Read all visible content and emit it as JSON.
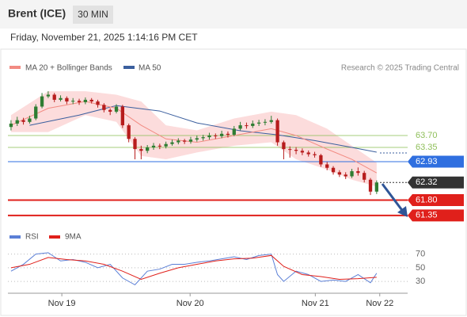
{
  "chart_data": {
    "type": "candlestick",
    "title": "Brent (ICE)",
    "timeframe": "30 MIN",
    "subtitle": "Friday, November 21, 2025 1:14:16 PM CET",
    "credit": "Research © 2025 Trading Central",
    "up_color": "#2e7d32",
    "down_color": "#b71c1c",
    "xlim": [
      -0.5,
      64
    ],
    "xticks": [
      {
        "value": 8.2,
        "label": "Nov 19"
      },
      {
        "value": 28.9,
        "label": "Nov 20"
      },
      {
        "value": 49.1,
        "label": "Nov 21"
      },
      {
        "value": 59.5,
        "label": "Nov 22"
      }
    ],
    "ylim": [
      61.09,
      65.47
    ],
    "levels": [
      {
        "value": 63.7,
        "label": "63.70",
        "color": "#8fbf5a",
        "style": "green"
      },
      {
        "value": 63.35,
        "label": "63.35",
        "color": "#8fbf5a",
        "style": "green"
      },
      {
        "value": 62.93,
        "color": "#2f6fe0",
        "style": "box"
      },
      {
        "value": 62.32,
        "color": "#333333",
        "style": "dotted"
      },
      {
        "value": 61.8,
        "label": "61.80",
        "color": "#e0201b",
        "style": "box"
      },
      {
        "value": 61.35,
        "color": "#e0201b",
        "style": "box"
      }
    ],
    "candles": {
      "open": [
        63.95,
        64.05,
        64.15,
        64.1,
        64.2,
        64.55,
        64.85,
        64.9,
        64.75,
        64.8,
        64.7,
        64.72,
        64.68,
        64.75,
        64.7,
        64.6,
        64.45,
        64.4,
        64.55,
        64.0,
        63.6,
        63.3,
        63.25,
        63.35,
        63.4,
        63.38,
        63.45,
        63.5,
        63.55,
        63.52,
        63.58,
        63.62,
        63.65,
        63.7,
        63.68,
        63.75,
        63.72,
        63.9,
        64.0,
        63.98,
        64.05,
        64.08,
        64.1,
        64.15,
        63.5,
        63.3,
        63.28,
        63.25,
        63.2,
        63.15,
        63.12,
        62.85,
        62.75,
        62.62,
        62.55,
        62.5,
        62.65,
        62.6,
        62.4,
        62.05
      ],
      "high": [
        64.15,
        64.25,
        64.22,
        64.28,
        64.62,
        64.95,
        65.0,
        64.95,
        64.88,
        64.85,
        64.8,
        64.78,
        64.82,
        64.8,
        64.75,
        64.65,
        64.5,
        64.62,
        64.6,
        64.05,
        63.65,
        63.4,
        63.42,
        63.48,
        63.46,
        63.52,
        63.58,
        63.62,
        63.6,
        63.66,
        63.7,
        63.72,
        63.78,
        63.76,
        63.84,
        63.82,
        63.98,
        64.1,
        64.08,
        64.14,
        64.16,
        64.18,
        64.28,
        64.2,
        63.55,
        63.38,
        63.36,
        63.32,
        63.26,
        63.22,
        63.16,
        62.92,
        62.8,
        62.68,
        62.62,
        62.72,
        62.76,
        62.66,
        62.45,
        62.38
      ],
      "low": [
        63.85,
        63.98,
        64.02,
        64.05,
        64.15,
        64.5,
        64.8,
        64.68,
        64.7,
        64.62,
        64.62,
        64.6,
        64.62,
        64.64,
        64.52,
        64.38,
        64.3,
        64.35,
        63.92,
        63.5,
        63.0,
        63.0,
        63.18,
        63.28,
        63.3,
        63.32,
        63.4,
        63.44,
        63.45,
        63.46,
        63.52,
        63.55,
        63.58,
        63.6,
        63.62,
        63.64,
        63.68,
        63.85,
        63.9,
        63.92,
        63.98,
        64.0,
        64.05,
        63.4,
        63.0,
        63.05,
        63.15,
        63.12,
        63.08,
        63.05,
        62.78,
        62.68,
        62.55,
        62.48,
        62.42,
        62.45,
        62.52,
        62.32,
        61.95,
        61.98
      ],
      "close": [
        64.05,
        64.15,
        64.1,
        64.2,
        64.55,
        64.85,
        64.9,
        64.75,
        64.8,
        64.7,
        64.72,
        64.68,
        64.75,
        64.7,
        64.6,
        64.45,
        64.4,
        64.55,
        64.0,
        63.6,
        63.3,
        63.25,
        63.35,
        63.4,
        63.38,
        63.45,
        63.5,
        63.55,
        63.52,
        63.58,
        63.62,
        63.65,
        63.7,
        63.68,
        63.75,
        63.72,
        63.9,
        64.0,
        63.98,
        64.05,
        64.08,
        64.1,
        64.15,
        63.5,
        63.3,
        63.28,
        63.25,
        63.2,
        63.15,
        63.12,
        62.85,
        62.75,
        62.62,
        62.55,
        62.5,
        62.65,
        62.6,
        62.4,
        62.05,
        62.32
      ]
    },
    "bands": {
      "color": "#fcdcdc",
      "x": [
        0,
        6,
        12,
        17,
        21,
        25,
        30,
        36,
        42,
        46,
        51,
        55,
        59
      ],
      "upper": [
        64.3,
        65.0,
        65.0,
        64.9,
        64.7,
        64.0,
        63.85,
        64.2,
        64.4,
        64.3,
        63.9,
        63.4,
        62.9
      ],
      "lower": [
        63.8,
        63.8,
        64.3,
        64.1,
        63.1,
        63.0,
        63.2,
        63.4,
        63.5,
        63.0,
        62.7,
        62.4,
        62.2
      ]
    },
    "ma20": {
      "name": "MA 20 + Bollinger Bands",
      "color": "#f28b82",
      "x": [
        0,
        6,
        12,
        17,
        21,
        25,
        30,
        36,
        42,
        46,
        51,
        55,
        59
      ],
      "values": [
        64.0,
        64.5,
        64.7,
        64.5,
        64.0,
        63.6,
        63.5,
        63.7,
        63.9,
        63.7,
        63.3,
        63.0,
        62.6
      ]
    },
    "ma50": {
      "name": "MA 50",
      "color": "#3b5f9e",
      "x": [
        3,
        11,
        17,
        24,
        30,
        37,
        43,
        49,
        55,
        59
      ],
      "values": [
        64.0,
        64.3,
        64.58,
        64.42,
        64.07,
        63.84,
        63.72,
        63.55,
        63.35,
        63.21
      ]
    },
    "indicator": {
      "type": "line",
      "ylim": [
        15,
        80
      ],
      "yticks": [
        30,
        50,
        70
      ],
      "series": [
        {
          "name": "RSI",
          "color": "#5b7fd6",
          "x": [
            0,
            2,
            4,
            6,
            8,
            10,
            12,
            14,
            16,
            18,
            20,
            22,
            24,
            26,
            28,
            30,
            32,
            34,
            36,
            38,
            40,
            42,
            43,
            44,
            46,
            48,
            50,
            52,
            54,
            56,
            58,
            59
          ],
          "values": [
            45,
            55,
            70,
            72,
            60,
            62,
            58,
            50,
            55,
            35,
            25,
            45,
            48,
            55,
            55,
            58,
            60,
            63,
            66,
            62,
            68,
            70,
            40,
            30,
            45,
            40,
            30,
            32,
            30,
            40,
            28,
            42
          ]
        },
        {
          "name": "9MA",
          "color": "#e0201b",
          "x": [
            0,
            3,
            6,
            9,
            12,
            15,
            18,
            21,
            24,
            27,
            30,
            33,
            36,
            39,
            42,
            44,
            47,
            50,
            53,
            56,
            59
          ],
          "values": [
            50,
            55,
            65,
            62,
            60,
            55,
            45,
            33,
            42,
            50,
            55,
            60,
            63,
            64,
            68,
            52,
            40,
            37,
            33,
            34,
            36
          ]
        }
      ]
    }
  }
}
